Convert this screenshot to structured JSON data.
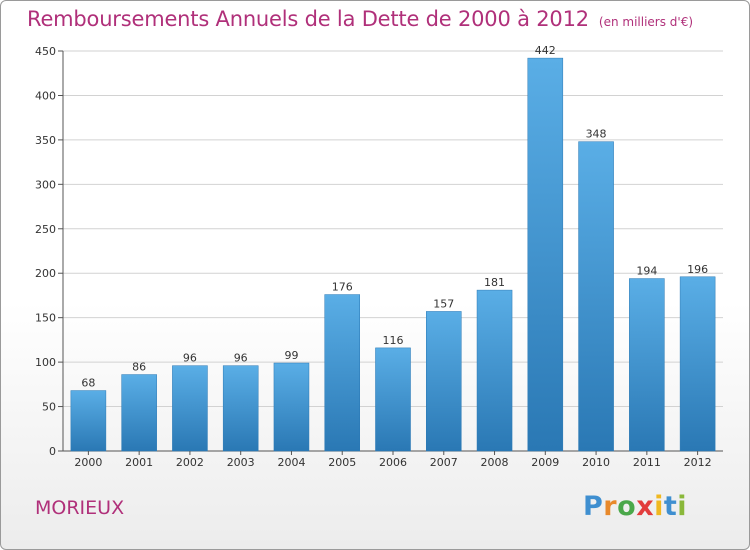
{
  "header": {
    "title": "Remboursements Annuels de la Dette de 2000 à 2012",
    "unit": "(en milliers d'€)"
  },
  "footer": {
    "commune": "MORIEUX",
    "logo": "Proxiti"
  },
  "colors": {
    "title": "#b0307a",
    "bar_top": "#5aaee6",
    "bar_bottom": "#2a78b4",
    "logo_letters": [
      "#3f8fd0",
      "#e8892b",
      "#4aa84a",
      "#e23c3c",
      "#f0b820",
      "#3f8fd0",
      "#8ab83a"
    ]
  },
  "chart_data": {
    "type": "bar",
    "categories": [
      "2000",
      "2001",
      "2002",
      "2003",
      "2004",
      "2005",
      "2006",
      "2007",
      "2008",
      "2009",
      "2010",
      "2011",
      "2012"
    ],
    "values": [
      68,
      86,
      96,
      96,
      99,
      176,
      116,
      157,
      181,
      442,
      348,
      194,
      196
    ],
    "ylim": [
      0,
      450
    ],
    "yticks": [
      0,
      50,
      100,
      150,
      200,
      250,
      300,
      350,
      400,
      450
    ],
    "grid": true,
    "data_labels": true
  }
}
